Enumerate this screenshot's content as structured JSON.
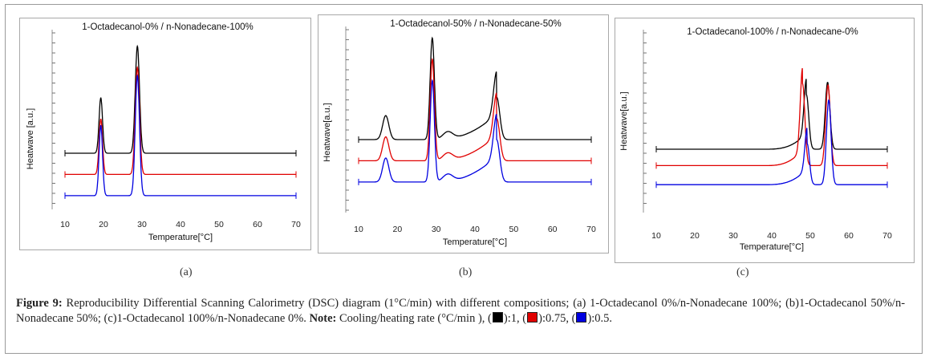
{
  "chart_data": [
    {
      "type": "line",
      "panel": "a",
      "title": "1-Octadecanol-0% / n-Nonadecane-100%",
      "xlabel": "Temperature[°C]",
      "ylabel": "Heatwave [a.u.]",
      "xlim": [
        10,
        70
      ],
      "x_ticks": [
        "10",
        "20",
        "30",
        "40",
        "50",
        "60",
        "70"
      ],
      "series": [
        {
          "name": "1",
          "color": "#000000",
          "baseline": 0,
          "peaks": [
            {
              "x": 19.3,
              "h": 3.0,
              "w": 0.45
            },
            {
              "x": 28.8,
              "h": 5.8,
              "w": 0.55
            }
          ]
        },
        {
          "name": "0.75",
          "color": "#e00000",
          "baseline": -1.15,
          "peaks": [
            {
              "x": 19.3,
              "h": 3.0,
              "w": 0.45
            },
            {
              "x": 28.8,
              "h": 5.8,
              "w": 0.55
            }
          ]
        },
        {
          "name": "0.5",
          "color": "#0000e0",
          "baseline": -2.3,
          "peaks": [
            {
              "x": 19.3,
              "h": 3.8,
              "w": 0.45
            },
            {
              "x": 28.8,
              "h": 6.5,
              "w": 0.55
            }
          ]
        }
      ]
    },
    {
      "type": "line",
      "panel": "b",
      "title": "1-Octadecanol-50% / n-Nonadecane-50%",
      "xlabel": "Temperature[°C]",
      "ylabel": "Heatwave[a.u.]",
      "xlim": [
        10,
        70
      ],
      "x_ticks": [
        "10",
        "20",
        "30",
        "40",
        "50",
        "60",
        "70"
      ],
      "series": [
        {
          "name": "1",
          "color": "#000000",
          "baseline": 0,
          "peaks": [
            {
              "x": 17,
              "h": 1.3,
              "w": 0.8
            },
            {
              "x": 29,
              "h": 5.5,
              "w": 0.55
            },
            {
              "x": 33,
              "h": 0.4,
              "w": 1.3
            },
            {
              "x": 45.6,
              "h": 2.3,
              "w": 0.8
            }
          ]
        },
        {
          "name": "0.75",
          "color": "#e00000",
          "baseline": -1.15,
          "peaks": [
            {
              "x": 17,
              "h": 1.3,
              "w": 0.8
            },
            {
              "x": 29,
              "h": 5.5,
              "w": 0.55
            },
            {
              "x": 33,
              "h": 0.4,
              "w": 1.3
            },
            {
              "x": 45.6,
              "h": 2.3,
              "w": 0.8
            }
          ]
        },
        {
          "name": "0.5",
          "color": "#0000e0",
          "baseline": -2.3,
          "peaks": [
            {
              "x": 17,
              "h": 1.3,
              "w": 0.8
            },
            {
              "x": 29,
              "h": 5.5,
              "w": 0.55
            },
            {
              "x": 33,
              "h": 0.4,
              "w": 1.3
            },
            {
              "x": 45.6,
              "h": 2.3,
              "w": 0.8
            }
          ]
        }
      ]
    },
    {
      "type": "line",
      "panel": "c",
      "title": "1-Octadecanol-100% / n-Nonadecane-0%",
      "xlabel": "Temperature[°C]",
      "ylabel": "Heatwave[a.u.]",
      "xlim": [
        10,
        70
      ],
      "x_ticks": [
        "10",
        "20",
        "30",
        "40",
        "50",
        "60",
        "70"
      ],
      "series": [
        {
          "name": "1",
          "color": "#000000",
          "baseline": 0,
          "peaks": [
            {
              "x": 49,
              "h": 4.0,
              "w": 0.6
            },
            {
              "x": 54.5,
              "h": 4.9,
              "w": 0.6
            }
          ]
        },
        {
          "name": "0.75",
          "color": "#e00000",
          "baseline": -1.2,
          "peaks": [
            {
              "x": 48,
              "h": 6.0,
              "w": 0.6
            },
            {
              "x": 54.6,
              "h": 5.9,
              "w": 0.6
            }
          ]
        },
        {
          "name": "0.5",
          "color": "#0000e0",
          "baseline": -2.6,
          "peaks": [
            {
              "x": 49.2,
              "h": 3.0,
              "w": 0.6
            },
            {
              "x": 54.8,
              "h": 6.2,
              "w": 0.6
            }
          ]
        }
      ]
    }
  ],
  "panel_labels": [
    "(a)",
    "(b)",
    "(c)"
  ],
  "caption": {
    "figure_label": "Figure 9:",
    "text": "Reproducibility Differential Scanning Calorimetry (DSC) diagram (1°C/min) with different compositions; (a) 1-Octadecanol 0%/n-Nonadecane 100%; (b)1-Octadecanol 50%/n-Nonadecane 50%; (c)1-Octadecanol 100%/n-Nonadecane 0%.",
    "note_label": "Note:",
    "note_text": "Cooling/heating rate (°C/min ),",
    "legend": [
      {
        "color": "#000000",
        "text": ":1,"
      },
      {
        "color": "#e00000",
        "text": ":0.75,"
      },
      {
        "color": "#0000e0",
        "text": ":0.5."
      }
    ]
  }
}
